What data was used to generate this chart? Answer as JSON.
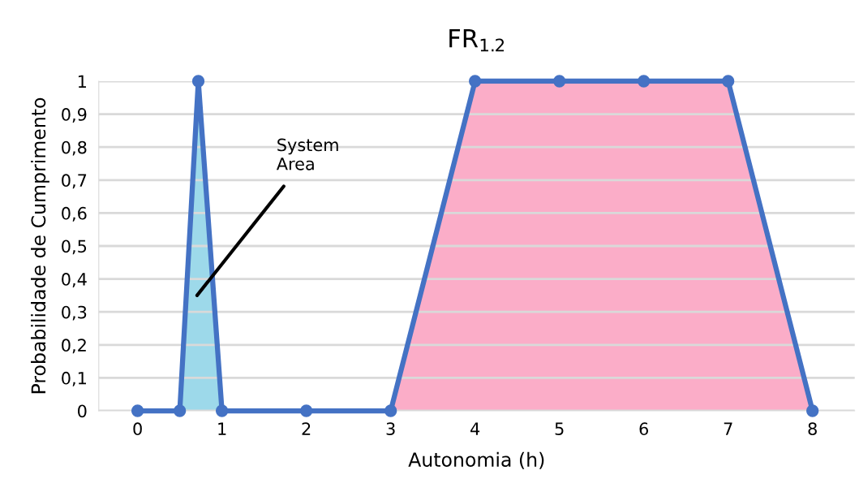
{
  "chart_data": {
    "type": "line",
    "title": "FR$_{1.2}$",
    "xlabel": "Autonomia (h)",
    "ylabel": "Probabilidade de Cumprimento",
    "series": [
      {
        "type": "area",
        "color": "#9dd9ea",
        "x": [
          0.5,
          0.72,
          1
        ],
        "values": [
          0,
          1,
          0
        ]
      },
      {
        "type": "area",
        "color": "#fbadc8",
        "x": [
          3,
          4,
          5,
          6,
          7,
          8
        ],
        "values": [
          0,
          1,
          1,
          1,
          1,
          0
        ]
      },
      {
        "color": "#4472c4",
        "marker": "circle",
        "x": [
          0,
          0.5,
          0.72,
          1,
          2,
          3,
          4,
          5,
          6,
          7,
          8
        ],
        "values": [
          0,
          0,
          1,
          0,
          0,
          0,
          1,
          1,
          1,
          1,
          0
        ]
      }
    ],
    "xlim": [
      -0.46,
      8.5
    ],
    "xticks": [
      0,
      1,
      2,
      3,
      4,
      5,
      6,
      7,
      8
    ],
    "ylim": [
      0,
      1
    ],
    "yticks": [
      0,
      {
        "value": 0.1,
        "label": "0,1"
      },
      {
        "value": 0.2,
        "label": "0,2"
      },
      {
        "value": 0.3,
        "label": "0,3"
      },
      {
        "value": 0.4,
        "label": "0,4"
      },
      {
        "value": 0.5,
        "label": "0,5"
      },
      {
        "value": 0.6,
        "label": "0,6"
      },
      {
        "value": 0.7,
        "label": "0,7"
      },
      {
        "value": 0.8,
        "label": "0,8"
      },
      {
        "value": 0.9,
        "label": "0,9"
      },
      1
    ],
    "grid": "y",
    "legend": false,
    "annotations": [
      "System\nArea"
    ]
  }
}
